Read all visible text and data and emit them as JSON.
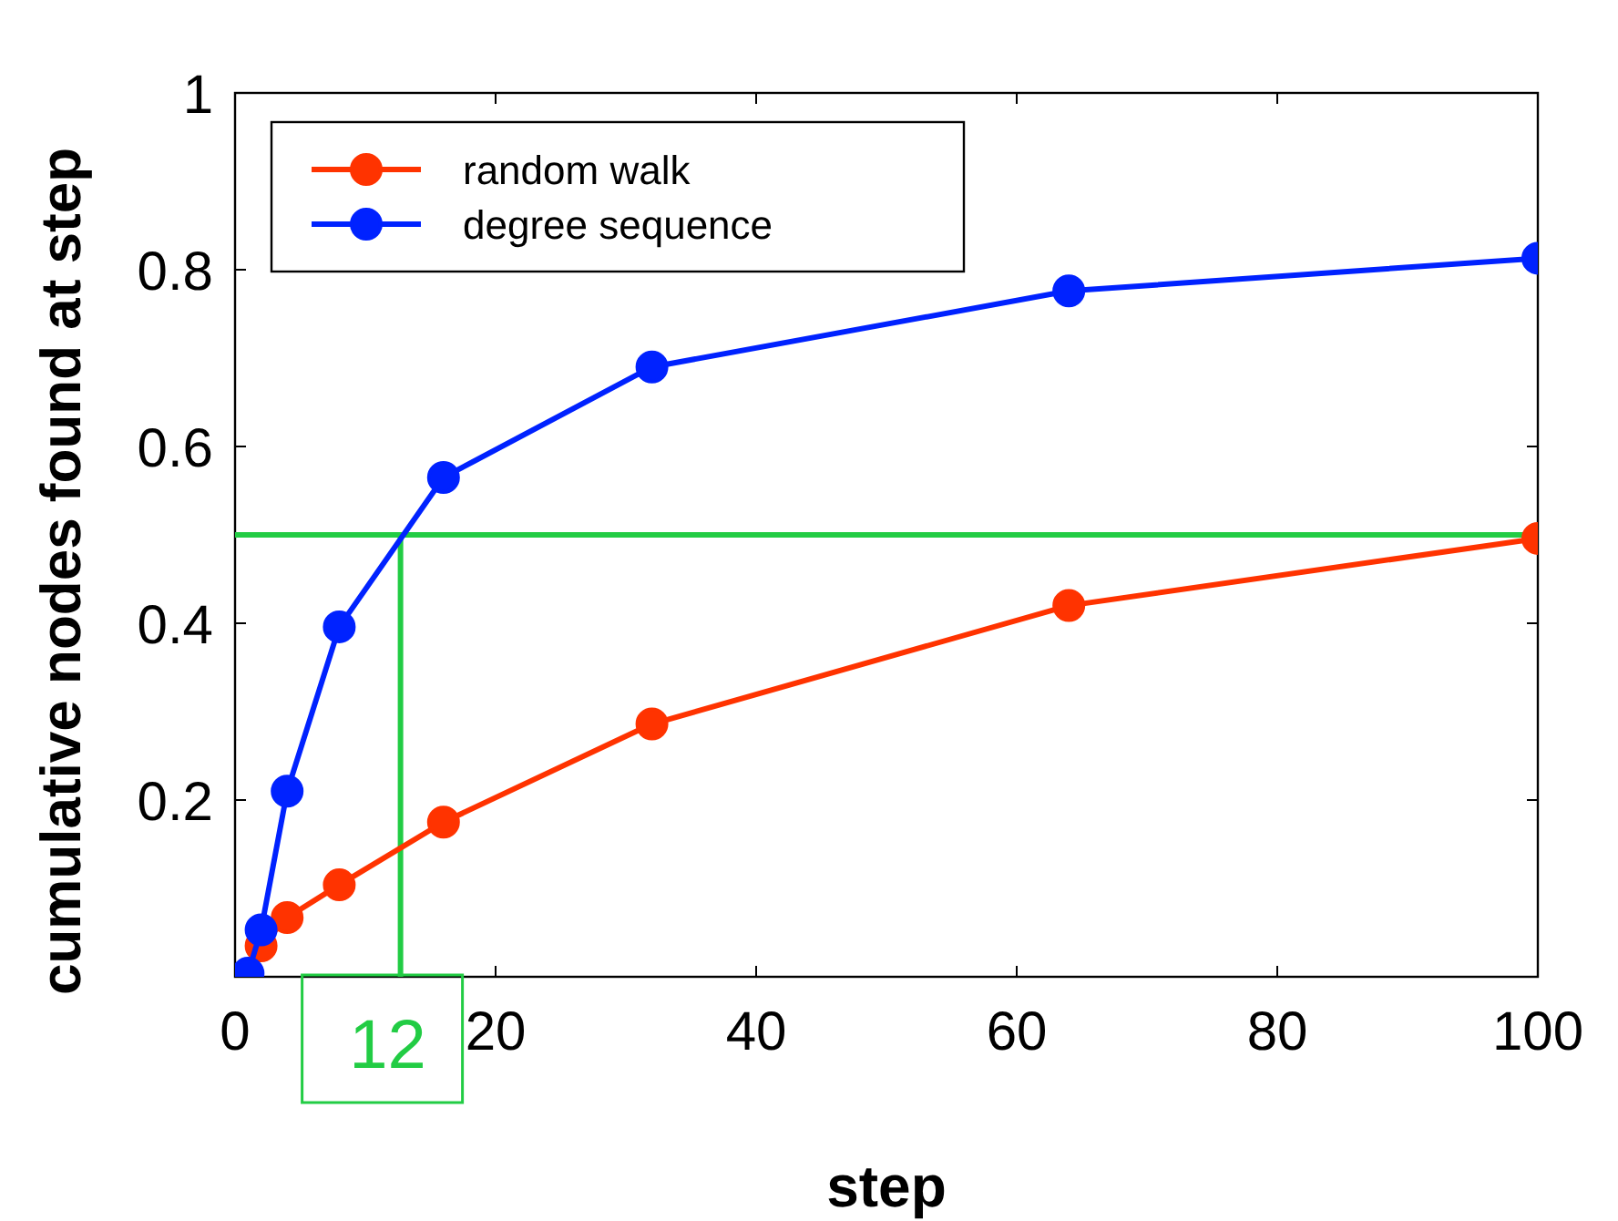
{
  "chart_data": {
    "type": "line",
    "xlabel": "step",
    "ylabel": "cumulative nodes found at step",
    "x": [
      1,
      2,
      4,
      8,
      16,
      32,
      64,
      100
    ],
    "series": [
      {
        "name": "random walk",
        "color": "#ff3300",
        "values": [
          null,
          0.035,
          0.067,
          0.104,
          0.175,
          0.286,
          0.42,
          0.496
        ]
      },
      {
        "name": "degree sequence",
        "color": "#0022ff",
        "values": [
          0.004,
          0.053,
          0.21,
          0.396,
          0.565,
          0.69,
          0.776,
          0.813
        ]
      }
    ],
    "xlim": [
      0,
      100
    ],
    "xticks": [
      0,
      20,
      40,
      60,
      80,
      100
    ],
    "ylim": [
      0,
      1
    ],
    "yticks": [
      0.2,
      0.4,
      0.6,
      0.8,
      1
    ],
    "ref_lines": [
      {
        "axis": "y",
        "value": 0.5,
        "color": "#22cc44"
      }
    ],
    "annotations": [
      {
        "text": "12",
        "x": 12.7,
        "y": 0.5
      }
    ],
    "marker": "circle",
    "legend": "top left",
    "grid": false
  }
}
